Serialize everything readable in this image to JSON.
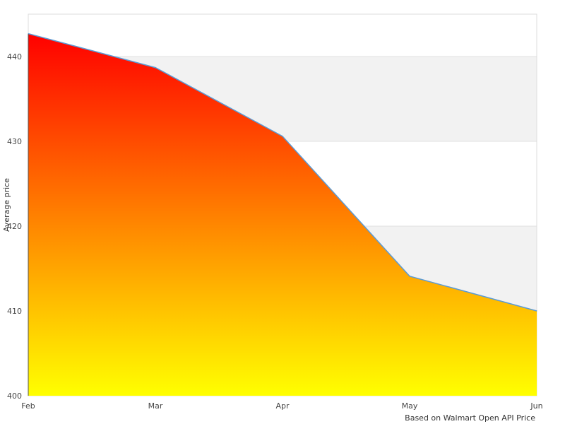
{
  "chart_data": {
    "type": "area",
    "title": "",
    "xlabel": "",
    "ylabel": "Average price",
    "caption": "Based on Walmart Open API Price",
    "categories": [
      "Feb",
      "Mar",
      "Apr",
      "May",
      "Jun"
    ],
    "series": [
      {
        "values": [
          442.7,
          438.7,
          430.6,
          414.1,
          410.0
        ]
      }
    ],
    "ylim": [
      400,
      445
    ],
    "yticks": [
      400,
      410,
      420,
      430,
      440
    ],
    "grid": "alternating horizontal bands",
    "legend": "none",
    "colors": {
      "fill_top": "#ff0000",
      "fill_bottom": "#ffff00",
      "line": "#5b9bd5",
      "band": "#f2f2f2",
      "border": "#dddddd"
    }
  }
}
